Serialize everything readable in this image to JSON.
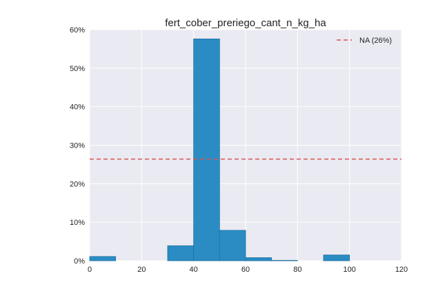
{
  "chart_data": {
    "type": "bar",
    "title": "fert_cober_preriego_cant_n_kg_ha",
    "xlabel": "",
    "ylabel": "",
    "xlim": [
      0,
      120
    ],
    "ylim": [
      0,
      60
    ],
    "x_ticks": [
      0,
      20,
      40,
      60,
      80,
      100,
      120
    ],
    "x_tick_labels": [
      "0",
      "20",
      "40",
      "60",
      "80",
      "100",
      "120"
    ],
    "y_ticks": [
      0,
      10,
      20,
      30,
      40,
      50,
      60
    ],
    "y_tick_labels": [
      "0%",
      "10%",
      "20%",
      "30%",
      "40%",
      "50%",
      "60%"
    ],
    "grid": true,
    "bins": [
      {
        "start": 0,
        "end": 10,
        "value": 1.1
      },
      {
        "start": 10,
        "end": 20,
        "value": 0
      },
      {
        "start": 20,
        "end": 30,
        "value": 0
      },
      {
        "start": 30,
        "end": 40,
        "value": 3.9
      },
      {
        "start": 40,
        "end": 50,
        "value": 57.6
      },
      {
        "start": 50,
        "end": 60,
        "value": 7.9
      },
      {
        "start": 60,
        "end": 70,
        "value": 0.8
      },
      {
        "start": 70,
        "end": 80,
        "value": 0.1
      },
      {
        "start": 80,
        "end": 90,
        "value": 0
      },
      {
        "start": 90,
        "end": 100,
        "value": 1.5
      }
    ],
    "reference_line": {
      "label": "NA (26%)",
      "value": 26.4,
      "style": "dashed"
    },
    "legend_position": "top-right",
    "colors": {
      "bar": "#2b8cc4",
      "bar_edge": "#1f6f9e",
      "reference": "#d9534f",
      "plot_bg": "#eaeaf2",
      "grid": "#ffffff"
    }
  }
}
